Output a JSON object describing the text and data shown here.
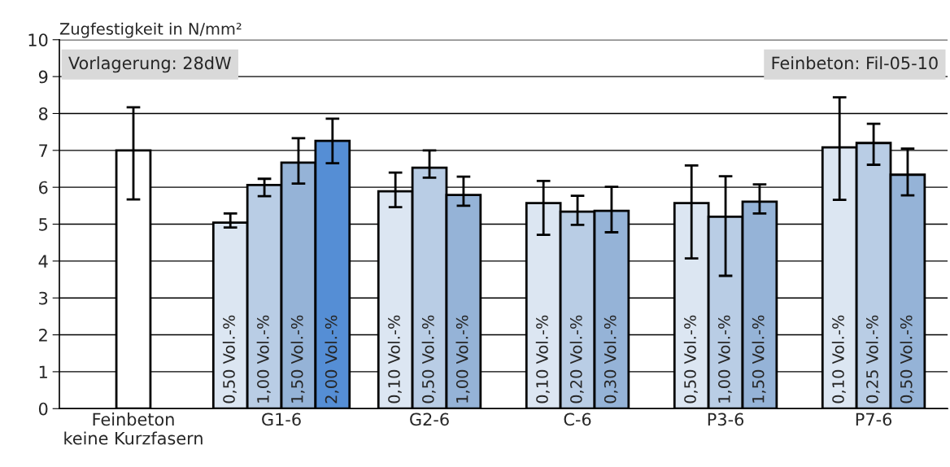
{
  "chart_data": {
    "type": "bar",
    "ylabel": "Zugfestigkeit in N/mm²",
    "categories": [
      "Feinbeton\nkeine Kurzfasern",
      "G1-6",
      "G2-6",
      "C-6",
      "P3-6",
      "P7-6"
    ],
    "series": [
      {
        "color": "#ffffff",
        "values": [
          7.0,
          null,
          null,
          null,
          null,
          null
        ],
        "errors": [
          [
            5.67,
            8.17
          ],
          null,
          null,
          null,
          null,
          null
        ]
      },
      {
        "color": "#dce6f2",
        "values": [
          null,
          5.04,
          5.89,
          5.57,
          5.57,
          7.08
        ],
        "errors": [
          null,
          [
            4.91,
            5.29
          ],
          [
            5.46,
            6.4
          ],
          [
            4.71,
            6.17
          ],
          [
            4.07,
            6.59
          ],
          [
            5.66,
            8.44
          ]
        ]
      },
      {
        "color": "#b9cde5",
        "values": [
          null,
          6.06,
          6.53,
          5.34,
          5.2,
          7.2
        ],
        "errors": [
          null,
          [
            5.76,
            6.23
          ],
          [
            6.26,
            7.0
          ],
          [
            4.98,
            5.77
          ],
          [
            3.6,
            6.3
          ],
          [
            6.61,
            7.72
          ]
        ]
      },
      {
        "color": "#95b3d7",
        "values": [
          null,
          6.67,
          5.79,
          5.36,
          5.61,
          6.34
        ],
        "errors": [
          null,
          [
            6.1,
            7.33
          ],
          [
            5.5,
            6.29
          ],
          [
            4.78,
            6.01
          ],
          [
            5.29,
            6.08
          ],
          [
            5.78,
            7.05
          ]
        ]
      },
      {
        "color": "#558ed5",
        "values": [
          null,
          7.26,
          null,
          null,
          null,
          null
        ],
        "errors": [
          null,
          [
            6.65,
            7.86
          ],
          null,
          null,
          null,
          null
        ]
      }
    ],
    "ylim": [
      0,
      10
    ],
    "yticks": [
      0,
      1,
      2,
      3,
      4,
      5,
      6,
      7,
      8,
      9,
      10
    ],
    "grid": "y",
    "legend": false,
    "annotations": [
      "Vorlagerung: 28dW",
      "Feinbeton: Fil-05-10",
      {
        "text": "0,50 Vol.-%",
        "x": "G1-6",
        "y": 0
      },
      {
        "text": "1,00 Vol.-%",
        "x": "G1-6",
        "y": 0
      },
      {
        "text": "1,50 Vol.-%",
        "x": "G1-6",
        "y": 0
      },
      {
        "text": "2,00 Vol.-%",
        "x": "G1-6",
        "y": 0
      },
      {
        "text": "0,10 Vol.-%",
        "x": "G2-6",
        "y": 0
      },
      {
        "text": "0,50 Vol.-%",
        "x": "G2-6",
        "y": 0
      },
      {
        "text": "1,00 Vol.-%",
        "x": "G2-6",
        "y": 0
      },
      {
        "text": "0,10 Vol.-%",
        "x": "C-6",
        "y": 0
      },
      {
        "text": "0,20 Vol.-%",
        "x": "C-6",
        "y": 0
      },
      {
        "text": "0,30 Vol.-%",
        "x": "C-6",
        "y": 0
      },
      {
        "text": "0,50 Vol.-%",
        "x": "P3-6",
        "y": 0
      },
      {
        "text": "1,00 Vol.-%",
        "x": "P3-6",
        "y": 0
      },
      {
        "text": "1,50 Vol.-%",
        "x": "P3-6",
        "y": 0
      },
      {
        "text": "0,10 Vol.-%",
        "x": "P7-6",
        "y": 0
      },
      {
        "text": "0,25 Vol.-%",
        "x": "P7-6",
        "y": 0
      },
      {
        "text": "0,50 Vol.-%",
        "x": "P7-6",
        "y": 0
      }
    ]
  }
}
